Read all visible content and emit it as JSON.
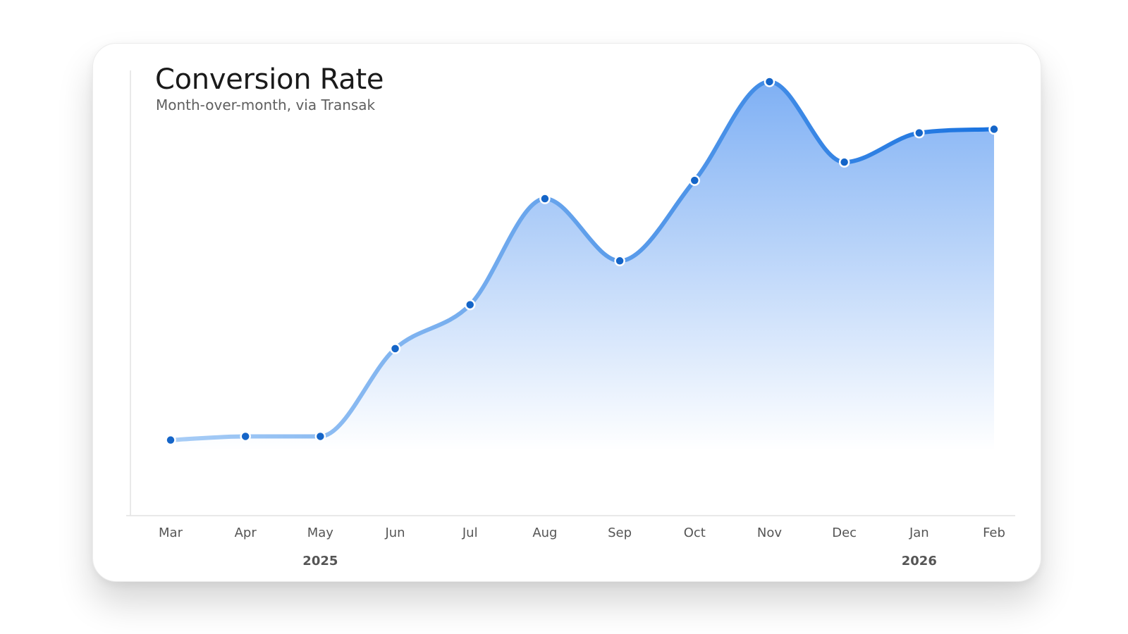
{
  "chart_data": {
    "type": "area",
    "title": "Conversion Rate",
    "subtitle": "Month-over-month, via Transak",
    "xlabel": "",
    "ylabel": "",
    "categories": [
      "Mar",
      "Apr",
      "May",
      "Jun",
      "Jul",
      "Aug",
      "Sep",
      "Oct",
      "Nov",
      "Dec",
      "Jan",
      "Feb"
    ],
    "year_labels": [
      {
        "label": "2025",
        "category": "May"
      },
      {
        "label": "2026",
        "category": "Jan"
      }
    ],
    "series": [
      {
        "values": [
          18,
          19,
          19,
          43,
          55,
          84,
          67,
          89,
          116,
          94,
          102,
          103
        ]
      }
    ],
    "ylim": [
      -10,
      121
    ],
    "grid": false,
    "legend": "none",
    "colors": {
      "line_start": "#a8cdf6",
      "line_end": "#1a73e0",
      "area_top": "#7fb0f4",
      "area_bottom": "#ffffff",
      "marker": "#1565c8",
      "axis": "#e2e2e2"
    }
  }
}
